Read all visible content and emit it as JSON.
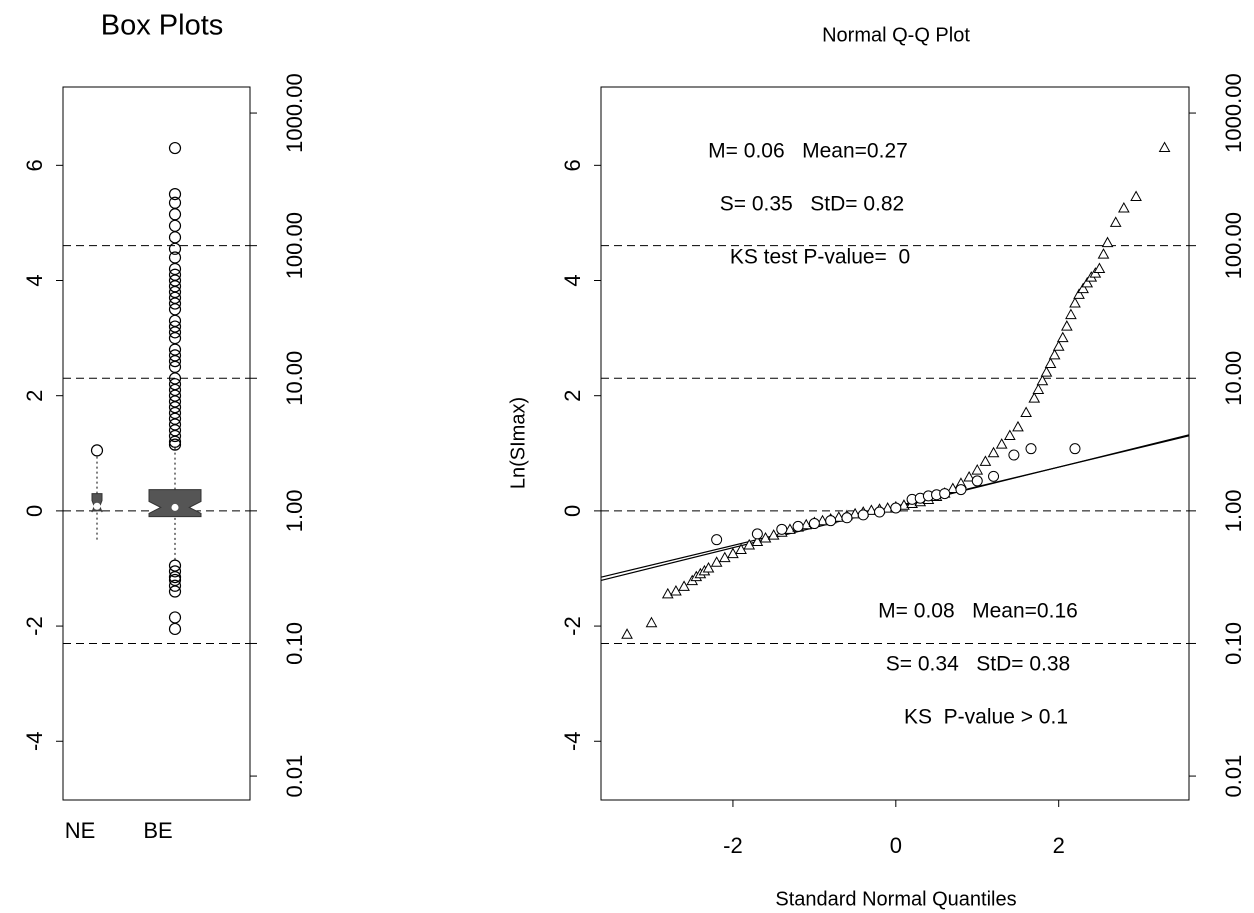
{
  "chart_data": [
    {
      "type": "box",
      "title": "Box Plots",
      "categories": [
        "NE",
        "BE"
      ],
      "color": "#555555",
      "boxes": [
        {
          "whisker_low": -0.5,
          "q1": 0.0,
          "median": 0.08,
          "q3": 0.3,
          "whisker_high": 0.97,
          "outliers": [
            1.05
          ]
        },
        {
          "whisker_low": -0.85,
          "q1": -0.1,
          "median": 0.06,
          "q3": 0.37,
          "whisker_high": 1.1,
          "outliers": [
            6.3,
            5.5,
            5.35,
            5.15,
            4.95,
            4.75,
            4.55,
            4.4,
            4.2,
            4.1,
            4.0,
            3.9,
            3.8,
            3.7,
            3.6,
            3.5,
            3.3,
            3.2,
            3.1,
            3.0,
            2.8,
            2.7,
            2.6,
            2.5,
            2.3,
            2.2,
            2.1,
            2.0,
            1.9,
            1.8,
            1.7,
            1.6,
            1.5,
            1.4,
            1.3,
            1.2,
            1.15,
            -0.95,
            -1.05,
            -1.15,
            -1.2,
            -1.3,
            -1.4,
            -1.85,
            -2.05
          ]
        }
      ],
      "ylim": [
        -5.02,
        7.36
      ],
      "yticks": [
        -4,
        -2,
        0,
        2,
        4,
        6
      ],
      "y2lim": [
        0.0066,
        1572
      ],
      "y2_log": true,
      "y2ticks": [
        {
          "value": 0.01,
          "label": "0.01"
        },
        {
          "value": 0.1,
          "label": "0.10"
        },
        {
          "value": 1,
          "label": "1.00"
        },
        {
          "value": 10,
          "label": "10.00"
        },
        {
          "value": 100,
          "label": "100.00"
        },
        {
          "value": 1000,
          "label": "1000.00"
        }
      ],
      "y2_ref_lines": [
        0.1,
        1,
        10,
        100
      ]
    },
    {
      "type": "qq",
      "title": "Normal Q-Q  Plot",
      "xlabel": "Standard Normal Quantiles",
      "ylabel": "Ln(SImax)",
      "xlim": [
        -3.62,
        3.6
      ],
      "xticks": [
        -2,
        0,
        2
      ],
      "ylim": [
        -5.02,
        7.36
      ],
      "yticks": [
        -4,
        -2,
        0,
        2,
        4,
        6
      ],
      "y2lim": [
        0.0066,
        1572
      ],
      "y2_log": true,
      "y2ticks": [
        {
          "value": 0.01,
          "label": "0.01"
        },
        {
          "value": 0.1,
          "label": "0.10"
        },
        {
          "value": 1,
          "label": "1.00"
        },
        {
          "value": 10,
          "label": "10.00"
        },
        {
          "value": 100,
          "label": "100.00"
        },
        {
          "value": 1000,
          "label": "1000.00"
        }
      ],
      "y2_ref_lines": [
        0.1,
        1,
        10,
        100
      ],
      "series": [
        {
          "marker": "triangle",
          "x": [
            -3.3,
            -3.0,
            -2.8,
            -2.7,
            -2.6,
            -2.5,
            -2.45,
            -2.4,
            -2.35,
            -2.3,
            -2.2,
            -2.1,
            -2.0,
            -1.9,
            -1.8,
            -1.7,
            -1.6,
            -1.5,
            -1.4,
            -1.3,
            -1.2,
            -1.1,
            -1.0,
            -0.9,
            -0.8,
            -0.7,
            -0.6,
            -0.5,
            -0.4,
            -0.3,
            -0.2,
            -0.1,
            0,
            0.1,
            0.2,
            0.3,
            0.4,
            0.5,
            0.6,
            0.7,
            0.8,
            0.9,
            1.0,
            1.1,
            1.2,
            1.3,
            1.4,
            1.5,
            1.6,
            1.7,
            1.75,
            1.8,
            1.85,
            1.9,
            1.95,
            2.0,
            2.05,
            2.1,
            2.15,
            2.2,
            2.25,
            2.3,
            2.35,
            2.4,
            2.45,
            2.5,
            2.55,
            2.6,
            2.7,
            2.8,
            2.95,
            3.3
          ],
          "values": [
            -2.15,
            -1.95,
            -1.45,
            -1.4,
            -1.32,
            -1.22,
            -1.15,
            -1.1,
            -1.05,
            -1.0,
            -0.9,
            -0.82,
            -0.75,
            -0.68,
            -0.6,
            -0.54,
            -0.48,
            -0.43,
            -0.38,
            -0.33,
            -0.29,
            -0.25,
            -0.21,
            -0.18,
            -0.15,
            -0.12,
            -0.09,
            -0.06,
            -0.03,
            0,
            0.02,
            0.04,
            0.06,
            0.09,
            0.12,
            0.15,
            0.19,
            0.24,
            0.3,
            0.38,
            0.47,
            0.58,
            0.7,
            0.85,
            1.0,
            1.15,
            1.3,
            1.45,
            1.7,
            1.95,
            2.1,
            2.25,
            2.4,
            2.55,
            2.7,
            2.85,
            3.0,
            3.2,
            3.4,
            3.6,
            3.75,
            3.85,
            3.95,
            4.05,
            4.12,
            4.2,
            4.45,
            4.65,
            5.0,
            5.25,
            5.45,
            6.3
          ]
        },
        {
          "marker": "circle",
          "x": [
            -2.2,
            -1.7,
            -1.4,
            -1.2,
            -1.0,
            -0.8,
            -0.6,
            -0.4,
            -0.2,
            0,
            0.2,
            0.3,
            0.4,
            0.5,
            0.6,
            0.8,
            1.0,
            1.2,
            1.45,
            1.66,
            2.2
          ],
          "values": [
            -0.5,
            -0.4,
            -0.32,
            -0.27,
            -0.22,
            -0.17,
            -0.12,
            -0.07,
            -0.02,
            0.05,
            0.2,
            0.22,
            0.26,
            0.28,
            0.3,
            0.37,
            0.52,
            0.6,
            0.97,
            1.08,
            1.08
          ]
        }
      ],
      "lines": [
        {
          "intercept": 0.08,
          "slope": 0.34
        },
        {
          "intercept": 0.06,
          "slope": 0.35
        }
      ],
      "annotations": [
        "M= 0.06   Mean=0.27",
        "S= 0.35   StD= 0.82",
        "KS test P-value=  0",
        "M= 0.08   Mean=0.16",
        "S= 0.34   StD= 0.38",
        "KS  P-value > 0.1"
      ]
    }
  ]
}
